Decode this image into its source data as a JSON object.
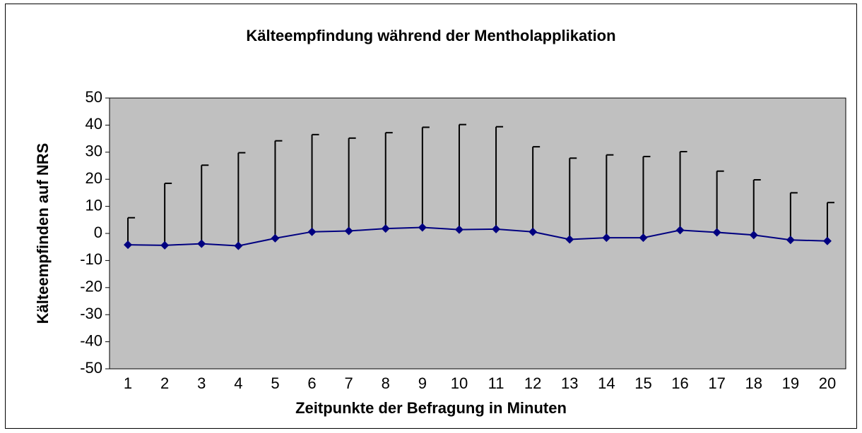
{
  "chart_data": {
    "type": "line",
    "title": "Kälteempfindung während der Mentholapplikation",
    "xlabel": "Zeitpunkte der Befragung in Minuten",
    "ylabel": "Kälteempfinden auf NRS",
    "categories": [
      "1",
      "2",
      "3",
      "4",
      "5",
      "6",
      "7",
      "8",
      "9",
      "10",
      "11",
      "12",
      "13",
      "14",
      "15",
      "16",
      "17",
      "18",
      "19",
      "20"
    ],
    "values": [
      -4.2,
      -4.4,
      -3.8,
      -4.6,
      -1.8,
      0.6,
      0.9,
      1.8,
      2.2,
      1.4,
      1.6,
      0.6,
      -2.2,
      -1.6,
      -1.6,
      1.2,
      0.4,
      -0.6,
      -2.4,
      -2.8
    ],
    "errors": [
      10,
      22.9,
      29,
      34.4,
      36,
      35.9,
      34.3,
      35.4,
      37,
      38.8,
      37.8,
      31.4,
      30,
      30.6,
      30,
      29,
      22.6,
      20.4,
      17.4,
      14.2
    ],
    "color": "#000080",
    "ylim": [
      -50,
      50
    ],
    "yticks": [
      -50,
      -40,
      -30,
      -20,
      -10,
      0,
      10,
      20,
      30,
      40,
      50
    ],
    "grid": false
  }
}
